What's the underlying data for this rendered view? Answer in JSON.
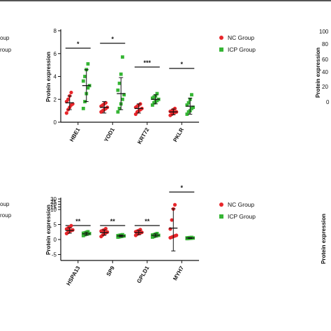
{
  "colors": {
    "nc": "#e8262b",
    "icp": "#35b534",
    "axis": "#111111"
  },
  "edge_text": {
    "left_top": [
      "oup",
      "roup"
    ],
    "left_bottom": [
      "oup",
      "roup"
    ],
    "right_ticks": [
      "100",
      "80",
      "60",
      "40",
      "20",
      "0"
    ],
    "right_ylabel_top": "Protein expression",
    "right_ylabel_bottom": "Protein expression"
  },
  "chart_data": [
    {
      "type": "scatter",
      "ylabel": "Protein expression",
      "ylim": [
        0,
        8
      ],
      "yticks": [
        "0",
        "2",
        "4",
        "6",
        "8"
      ],
      "categories": [
        "HBE1",
        "YOD1",
        "KRT72",
        "PKLR"
      ],
      "significance": [
        "*",
        "*",
        "***",
        "*"
      ],
      "legend": {
        "position": "right",
        "entries": [
          "NC Group",
          "ICP Group"
        ]
      },
      "series": [
        {
          "name": "NC Group",
          "marker": "circle",
          "mean": [
            1.7,
            1.3,
            1.2,
            0.9
          ],
          "sd": [
            0.6,
            0.5,
            0.4,
            0.25
          ],
          "points": [
            [
              0.8,
              1.1,
              1.3,
              1.5,
              1.6,
              1.8,
              2.0,
              2.3,
              2.6
            ],
            [
              0.9,
              1.0,
              1.1,
              1.2,
              1.3,
              1.4,
              1.5,
              1.6,
              1.7
            ],
            [
              0.7,
              0.9,
              1.0,
              1.1,
              1.2,
              1.3,
              1.4,
              1.5,
              1.6
            ],
            [
              0.6,
              0.7,
              0.8,
              0.85,
              0.9,
              0.95,
              1.0,
              1.1,
              1.2
            ]
          ]
        },
        {
          "name": "ICP Group",
          "marker": "square",
          "mean": [
            3.2,
            2.5,
            2.0,
            1.4
          ],
          "sd": [
            1.4,
            1.4,
            0.4,
            0.7
          ],
          "points": [
            [
              1.2,
              1.8,
              2.5,
              3.0,
              3.2,
              3.6,
              4.0,
              4.6,
              5.1
            ],
            [
              0.9,
              1.2,
              1.6,
              2.0,
              2.4,
              2.8,
              3.4,
              4.2,
              5.7
            ],
            [
              1.5,
              1.7,
              1.8,
              1.9,
              2.0,
              2.1,
              2.2,
              2.3,
              2.5
            ],
            [
              0.7,
              0.9,
              1.0,
              1.2,
              1.3,
              1.5,
              1.7,
              2.0,
              2.4
            ]
          ]
        }
      ]
    },
    {
      "type": "scatter",
      "ylabel": "Protein expression",
      "ylim": [
        -5,
        30
      ],
      "yticks": [
        "-5",
        "0",
        "5",
        "10",
        "15",
        "20",
        "25",
        "30"
      ],
      "categories": [
        "HSPA13",
        "SP9",
        "GPLD1",
        "MYH7"
      ],
      "significance": [
        "**",
        "**",
        "**",
        "*"
      ],
      "legend": {
        "position": "right",
        "entries": [
          "NC Group",
          "ICP Group"
        ]
      },
      "series": [
        {
          "name": "NC Group",
          "marker": "circle",
          "mean": [
            3.0,
            2.3,
            2.3,
            3.8
          ],
          "sd": [
            0.9,
            0.9,
            0.7,
            7.6
          ],
          "points": [
            [
              2.0,
              2.4,
              2.8,
              3.0,
              3.2,
              3.5,
              3.8,
              4.2,
              4.6
            ],
            [
              1.0,
              1.5,
              1.9,
              2.2,
              2.5,
              2.8,
              3.0,
              3.2,
              3.6
            ],
            [
              1.4,
              1.8,
              2.0,
              2.2,
              2.4,
              2.6,
              2.8,
              3.0,
              3.3
            ],
            [
              0.6,
              0.8,
              1.0,
              1.2,
              1.4,
              3.5,
              6.5,
              11.0,
              19.0
            ]
          ]
        },
        {
          "name": "ICP Group",
          "marker": "square",
          "mean": [
            1.9,
            1.2,
            1.4,
            0.5
          ],
          "sd": [
            0.5,
            0.3,
            0.5,
            0.15
          ],
          "points": [
            [
              1.3,
              1.6,
              1.8,
              1.9,
              2.0,
              2.1,
              2.2,
              2.4,
              2.6
            ],
            [
              0.8,
              0.9,
              1.0,
              1.1,
              1.2,
              1.3,
              1.4,
              1.5,
              1.6
            ],
            [
              0.8,
              1.0,
              1.2,
              1.3,
              1.4,
              1.5,
              1.6,
              1.8,
              2.0
            ],
            [
              0.3,
              0.35,
              0.4,
              0.45,
              0.5,
              0.55,
              0.6,
              0.65,
              0.7
            ]
          ]
        }
      ]
    }
  ]
}
